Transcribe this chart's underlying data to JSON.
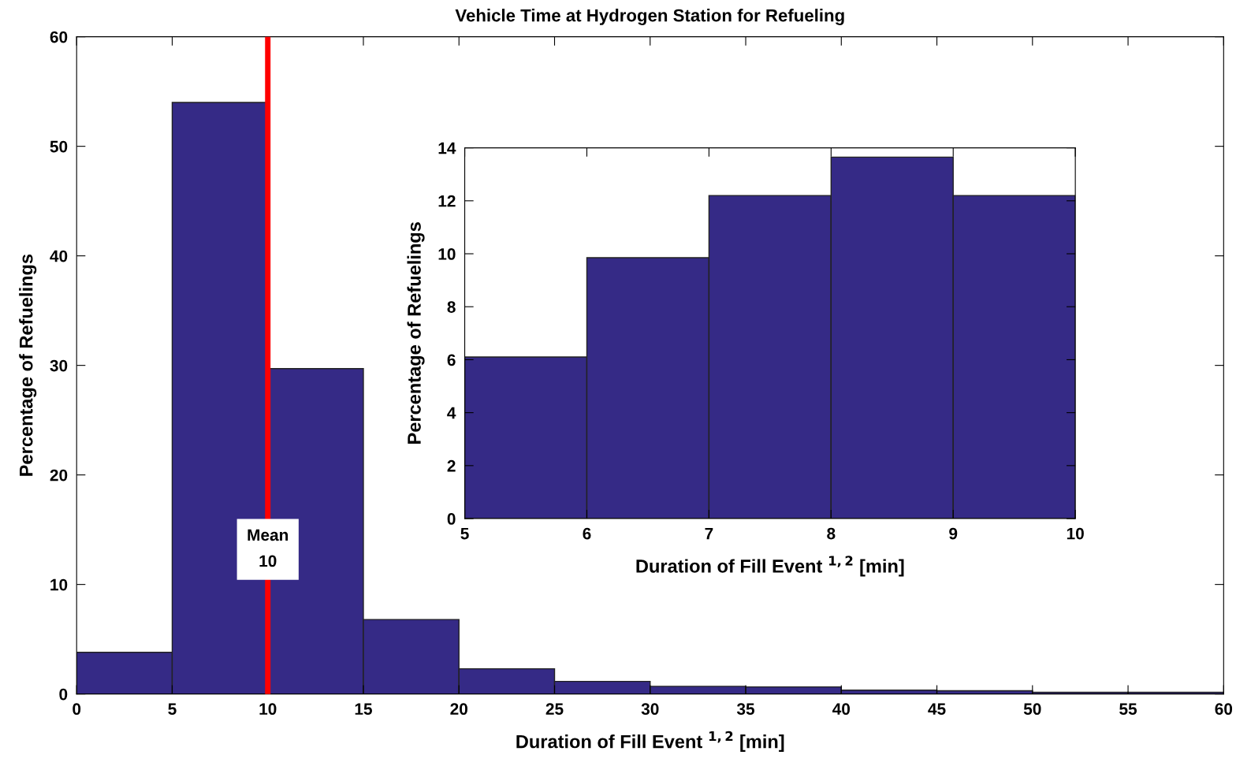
{
  "chart_data": [
    {
      "type": "histogram",
      "title": "Vehicle Time at Hydrogen Station for Refueling",
      "xlabel": "Duration of Fill Event $^{1,2}$ [min]",
      "ylabel": "Percentage of Refuelings",
      "bins": [
        0,
        5,
        10,
        15,
        20,
        25,
        30,
        35,
        40,
        45,
        50,
        55,
        60
      ],
      "values": [
        3.8,
        54.0,
        29.7,
        6.8,
        2.3,
        1.15,
        0.7,
        0.65,
        0.35,
        0.3,
        0.15,
        0.15
      ],
      "color": "#352a86",
      "xlim": [
        0,
        60
      ],
      "xticks": [
        0,
        5,
        10,
        15,
        20,
        25,
        30,
        35,
        40,
        45,
        50,
        55,
        60
      ],
      "ylim": [
        0,
        60
      ],
      "yticks": [
        0,
        10,
        20,
        30,
        40,
        50,
        60
      ],
      "ref_lines": [
        {
          "axis": "x",
          "value": 10,
          "label": "Mean\n10",
          "color": "#ff0000"
        }
      ],
      "grid": false,
      "legend": false
    },
    {
      "type": "histogram",
      "xlabel": "Duration of Fill Event $^{1,2}$ [min]",
      "ylabel": "Percentage of Refuelings",
      "bins": [
        5,
        6,
        7,
        8,
        9,
        10
      ],
      "values": [
        6.1,
        9.85,
        12.2,
        13.65,
        12.2
      ],
      "color": "#352a86",
      "xlim": [
        5,
        10
      ],
      "xticks": [
        5,
        6,
        7,
        8,
        9,
        10
      ],
      "ylim": [
        0,
        14
      ],
      "yticks": [
        0,
        2,
        4,
        6,
        8,
        10,
        12,
        14
      ],
      "grid": false,
      "legend": false
    }
  ]
}
